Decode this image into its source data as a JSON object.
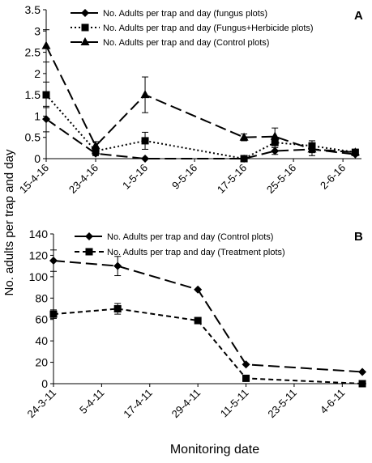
{
  "figure": {
    "ylabel": "No. adults per trap and day",
    "xlabel": "Monitoring date"
  },
  "chart_data": [
    {
      "type": "line",
      "panel_label": "A",
      "x_tick_labels": [
        "15-4-16",
        "23-4-16",
        "1-5-16",
        "9-5-16",
        "17-5-16",
        "25-5-16",
        "2-6-16"
      ],
      "x_tick_dates": [
        "2016-04-15",
        "2016-04-23",
        "2016-05-01",
        "2016-05-09",
        "2016-05-17",
        "2016-05-25",
        "2016-06-02"
      ],
      "x_range": [
        "2016-04-15",
        "2016-06-05"
      ],
      "ylim": [
        0,
        3.5
      ],
      "y_ticks": [
        "0",
        "0.5",
        "1",
        "1.5",
        "2",
        "2.5",
        "3",
        "3.5"
      ],
      "legend_position": "top-left",
      "series": [
        {
          "name": "No. Adults per trap and day (fungus plots)",
          "marker": "diamond",
          "dash": "long",
          "x": [
            "2016-04-15",
            "2016-04-23",
            "2016-05-01",
            "2016-05-17",
            "2016-05-22",
            "2016-05-28",
            "2016-06-04"
          ],
          "y": [
            0.93,
            0.12,
            0.0,
            0.0,
            0.18,
            0.22,
            0.1
          ],
          "err": [
            0.3,
            0.05,
            0,
            0,
            0.08,
            0.08,
            0.03
          ]
        },
        {
          "name": "No. Adults per trap and day (Fungus+Herbicide plots)",
          "marker": "square",
          "dash": "dotted",
          "x": [
            "2016-04-15",
            "2016-04-23",
            "2016-05-01",
            "2016-05-17",
            "2016-05-22",
            "2016-05-28",
            "2016-06-04"
          ],
          "y": [
            1.5,
            0.18,
            0.42,
            0.0,
            0.38,
            0.3,
            0.15
          ],
          "err": [
            0.3,
            0.1,
            0.2,
            0,
            0.12,
            0.12,
            0.05
          ]
        },
        {
          "name": "No. Adults per trap and day (Control plots)",
          "marker": "triangle",
          "dash": "long",
          "x": [
            "2016-04-15",
            "2016-04-23",
            "2016-05-01",
            "2016-05-17",
            "2016-05-22",
            "2016-05-28",
            "2016-06-04"
          ],
          "y": [
            2.65,
            0.3,
            1.5,
            0.5,
            0.52,
            0.22,
            0.15
          ],
          "err": [
            0.38,
            0.1,
            0.42,
            0.08,
            0.2,
            0.15,
            0.05
          ]
        }
      ]
    },
    {
      "type": "line",
      "panel_label": "B",
      "x_tick_labels": [
        "24-3-11",
        "5-4-11",
        "17-4-11",
        "29-4-11",
        "11-5-11",
        "23-5-11",
        "4-6-11"
      ],
      "x_tick_dates": [
        "2011-03-24",
        "2011-04-05",
        "2011-04-17",
        "2011-04-29",
        "2011-05-11",
        "2011-05-23",
        "2011-06-04"
      ],
      "x_range": [
        "2011-03-24",
        "2011-06-10"
      ],
      "ylim": [
        0,
        140
      ],
      "y_ticks": [
        "0",
        "20",
        "40",
        "60",
        "80",
        "100",
        "120",
        "140"
      ],
      "legend_position": "top-left",
      "series": [
        {
          "name": "No. Adults per trap and day (Control plots)",
          "marker": "diamond",
          "dash": "long",
          "x": [
            "2011-03-24",
            "2011-04-09",
            "2011-04-29",
            "2011-05-11",
            "2011-06-09"
          ],
          "y": [
            115,
            110,
            88,
            18,
            11
          ],
          "err": [
            10,
            9,
            0,
            0,
            0
          ]
        },
        {
          "name": "No. Adults per trap and day (Treatment plots)",
          "marker": "square",
          "dash": "short",
          "x": [
            "2011-03-24",
            "2011-04-09",
            "2011-04-29",
            "2011-05-11",
            "2011-06-09"
          ],
          "y": [
            65,
            70,
            59,
            5,
            0
          ],
          "err": [
            4,
            5,
            0,
            0,
            0
          ]
        }
      ]
    }
  ],
  "colors": {
    "line": "#000000",
    "axis": "#000000",
    "background": "#ffffff"
  }
}
